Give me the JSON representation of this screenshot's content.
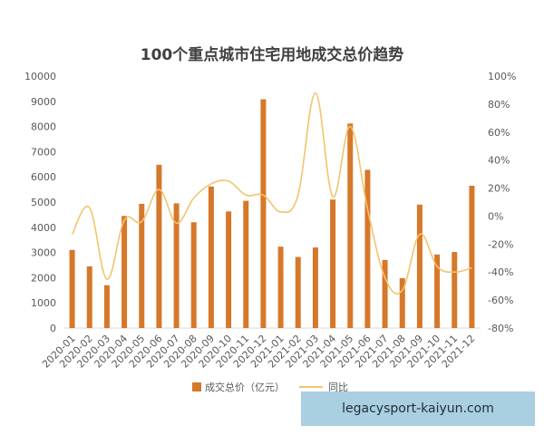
{
  "chart_data": {
    "type": "bar",
    "title": "100个重点城市住宅用地成交总价趋势",
    "categories": [
      "2020-01",
      "2020-02",
      "2020-03",
      "2020-04",
      "2020-05",
      "2020-06",
      "2020-07",
      "2020-08",
      "2020-09",
      "2020-10",
      "2020-11",
      "2020-12",
      "2021-01",
      "2021-02",
      "2021-03",
      "2021-04",
      "2021-05",
      "2021-06",
      "2021-07",
      "2021-08",
      "2021-09",
      "2021-10",
      "2021-11",
      "2021-12"
    ],
    "series": [
      {
        "name": "成交总价（亿元）",
        "type": "bar",
        "axis": "left",
        "color": "#d6782a",
        "values": [
          3100,
          2450,
          1700,
          4450,
          4930,
          6480,
          4950,
          4200,
          5620,
          4630,
          5050,
          9080,
          3230,
          2820,
          3200,
          5100,
          8120,
          6280,
          2700,
          1980,
          4900,
          2920,
          3020,
          5650
        ]
      },
      {
        "name": "同比",
        "type": "line",
        "axis": "right",
        "color": "#f2c46d",
        "values": [
          -13,
          6,
          -45,
          -3,
          -4,
          19,
          -5,
          13,
          23,
          25,
          15,
          15,
          3,
          15,
          88,
          14,
          64,
          5,
          -44,
          -53,
          -13,
          -36,
          -40,
          -37
        ]
      }
    ],
    "yleft_ticks": [
      "0",
      "1000",
      "2000",
      "3000",
      "4000",
      "5000",
      "6000",
      "7000",
      "8000",
      "9000",
      "10000"
    ],
    "yright_ticks": [
      "-80%",
      "-60%",
      "-40%",
      "-20%",
      "0%",
      "20%",
      "40%",
      "60%",
      "80%",
      "100%"
    ],
    "ylim_left": [
      0,
      10000
    ],
    "ylim_right": [
      -80,
      100
    ],
    "legend_position": "bottom",
    "grid": false
  },
  "watermark": {
    "text": "legacysport-kaiyun.com"
  }
}
